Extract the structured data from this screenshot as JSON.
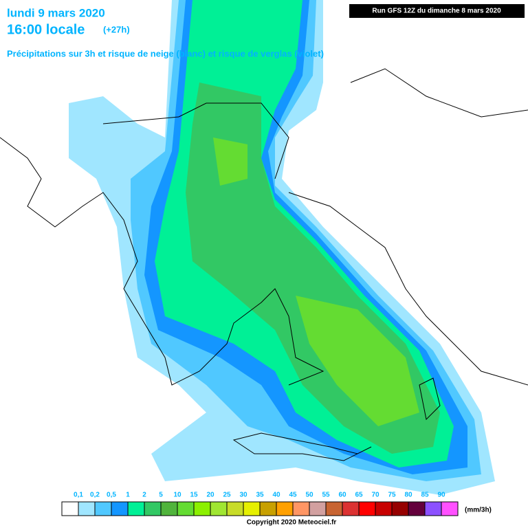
{
  "header": {
    "date": "lundi 9 mars 2020",
    "time": "16:00 locale",
    "lead": "(+27h)",
    "subtitle": "Précipitations sur 3h et risque de neige (blanc) et risque de verglas (violet)",
    "run": "Run GFS 12Z du dimanche 8 mars 2020"
  },
  "legend": {
    "labels": [
      "0,1",
      "0,2",
      "0,5",
      "1",
      "2",
      "5",
      "10",
      "15",
      "20",
      "25",
      "30",
      "35",
      "40",
      "45",
      "50",
      "55",
      "60",
      "65",
      "70",
      "75",
      "80",
      "85",
      "90"
    ],
    "colors": [
      "#ffffff",
      "#a0e6ff",
      "#50c8ff",
      "#1496ff",
      "#00f096",
      "#32c864",
      "#50b43c",
      "#64dc32",
      "#8cf000",
      "#a0e632",
      "#c8dc28",
      "#e6f000",
      "#c8a000",
      "#ffa000",
      "#ff9664",
      "#d2a0a0",
      "#c86432",
      "#dc3232",
      "#ff0000",
      "#c80000",
      "#960000",
      "#64003c",
      "#8c50ff",
      "#ff50ff"
    ],
    "unit": "(mm/3h)"
  },
  "footer": {
    "copyright": "Copyright 2020 Meteociel.fr"
  }
}
